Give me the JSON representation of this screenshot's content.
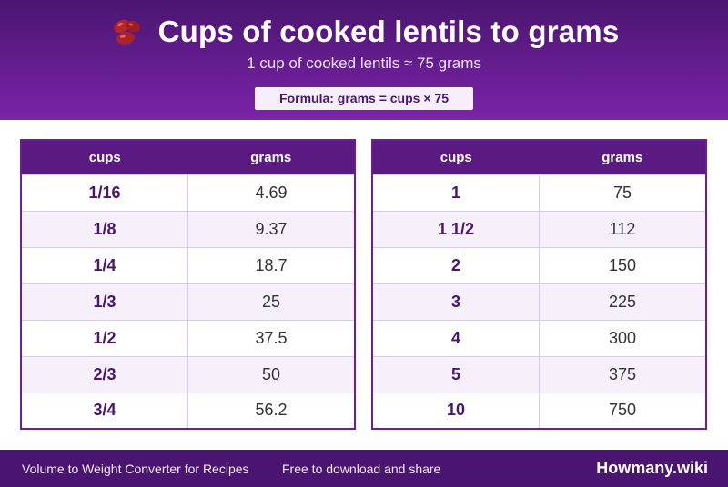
{
  "header": {
    "icon": "beans-icon",
    "title": "Cups of cooked lentils to grams",
    "subtitle": "1 cup of cooked lentils ≈ 75 grams",
    "formula": "Formula: grams = cups × 75"
  },
  "tables": {
    "col_cups": "cups",
    "col_grams": "grams",
    "left": [
      {
        "cups": "1/16",
        "grams": "4.69"
      },
      {
        "cups": "1/8",
        "grams": "9.37"
      },
      {
        "cups": "1/4",
        "grams": "18.7"
      },
      {
        "cups": "1/3",
        "grams": "25"
      },
      {
        "cups": "1/2",
        "grams": "37.5"
      },
      {
        "cups": "2/3",
        "grams": "50"
      },
      {
        "cups": "3/4",
        "grams": "56.2"
      }
    ],
    "right": [
      {
        "cups": "1",
        "grams": "75"
      },
      {
        "cups": "1 1/2",
        "grams": "112"
      },
      {
        "cups": "2",
        "grams": "150"
      },
      {
        "cups": "3",
        "grams": "225"
      },
      {
        "cups": "4",
        "grams": "300"
      },
      {
        "cups": "5",
        "grams": "375"
      },
      {
        "cups": "10",
        "grams": "750"
      }
    ]
  },
  "footer": {
    "left_text": "Volume to Weight Converter for Recipes",
    "mid_text": "Free to download and share",
    "brand": "Howmany.wiki"
  },
  "colors": {
    "accent": "#5a1a82",
    "header_dark": "#4a1570",
    "row_alt": "#f5f0fa"
  }
}
